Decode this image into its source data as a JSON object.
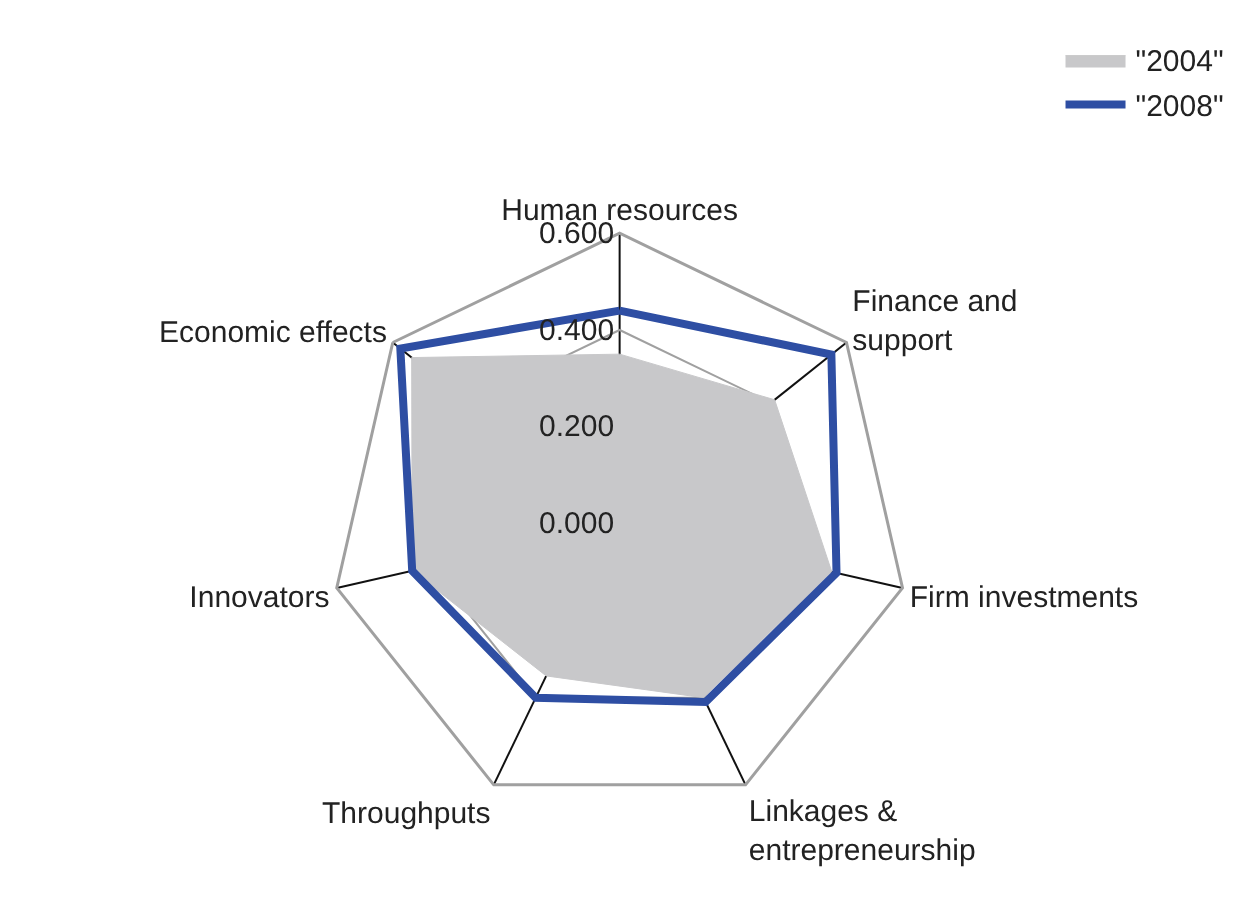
{
  "chart_data": {
    "type": "radar",
    "categories": [
      "Human resources",
      "Finance and support",
      "Firm investments",
      "Linkages & entrepreneurship",
      "Throughputs",
      "Innovators",
      "Economic effects"
    ],
    "series": [
      {
        "name": "\"2004\"",
        "color": "#c8c8ca",
        "type": "area",
        "values": [
          0.35,
          0.41,
          0.45,
          0.4,
          0.35,
          0.44,
          0.55
        ]
      },
      {
        "name": "\"2008\"",
        "color": "#2e4ea3",
        "values": [
          0.44,
          0.56,
          0.46,
          0.41,
          0.4,
          0.44,
          0.58
        ]
      }
    ],
    "ylim": [
      0,
      0.6
    ],
    "yticks": [
      {
        "value": 0,
        "label": "0.000"
      },
      {
        "value": 0.2,
        "label": "0.200"
      },
      {
        "value": 0.4,
        "label": "0.400"
      },
      {
        "value": 0.6,
        "label": "0.600"
      }
    ],
    "legend": "top right",
    "grid": true,
    "marker": "none"
  }
}
